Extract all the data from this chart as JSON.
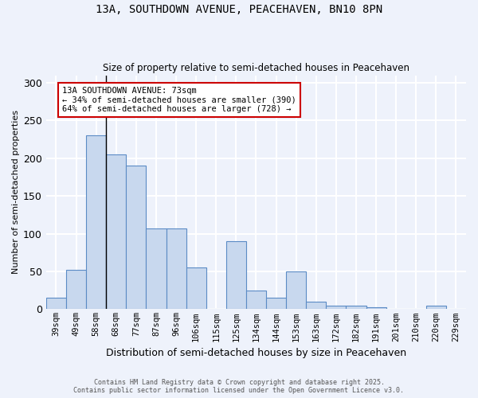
{
  "title_line1": "13A, SOUTHDOWN AVENUE, PEACEHAVEN, BN10 8PN",
  "title_line2": "Size of property relative to semi-detached houses in Peacehaven",
  "xlabel": "Distribution of semi-detached houses by size in Peacehaven",
  "ylabel": "Number of semi-detached properties",
  "categories": [
    "39sqm",
    "49sqm",
    "58sqm",
    "68sqm",
    "77sqm",
    "87sqm",
    "96sqm",
    "106sqm",
    "115sqm",
    "125sqm",
    "134sqm",
    "144sqm",
    "153sqm",
    "163sqm",
    "172sqm",
    "182sqm",
    "191sqm",
    "201sqm",
    "210sqm",
    "220sqm",
    "229sqm"
  ],
  "values": [
    15,
    52,
    230,
    205,
    190,
    107,
    107,
    55,
    0,
    90,
    25,
    15,
    50,
    10,
    5,
    5,
    2,
    0,
    0,
    5,
    0
  ],
  "bar_color": "#c8d8ee",
  "bar_edge_color": "#5b8bc5",
  "annotation_text": "13A SOUTHDOWN AVENUE: 73sqm\n← 34% of semi-detached houses are smaller (390)\n64% of semi-detached houses are larger (728) →",
  "annotation_box_color": "#ffffff",
  "annotation_box_edge_color": "#cc0000",
  "vline_x_index": 2,
  "footer_line1": "Contains HM Land Registry data © Crown copyright and database right 2025.",
  "footer_line2": "Contains public sector information licensed under the Open Government Licence v3.0.",
  "ylim": [
    0,
    310
  ],
  "yticks": [
    0,
    50,
    100,
    150,
    200,
    250,
    300
  ],
  "background_color": "#eef2fb",
  "grid_color": "#ffffff"
}
